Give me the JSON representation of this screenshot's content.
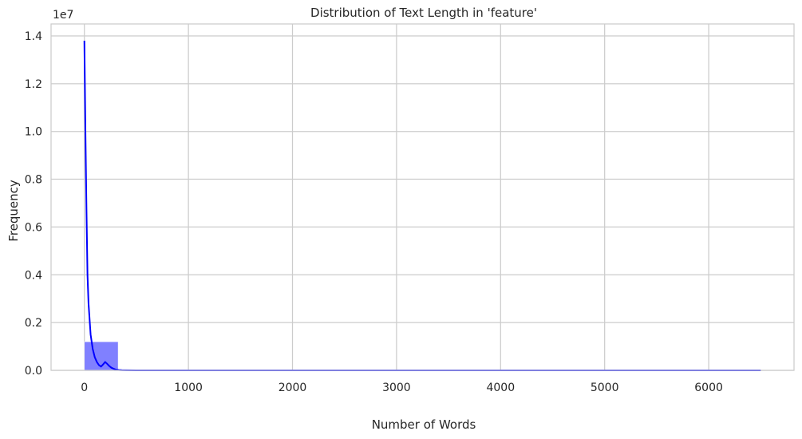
{
  "chart_data": {
    "type": "histogram",
    "title": "Distribution of Text Length in 'feature'",
    "xlabel": "Number of Words",
    "ylabel": "Frequency",
    "offset_label": "1e7",
    "xlim": [
      -320,
      6820
    ],
    "ylim": [
      0,
      14500000
    ],
    "x_ticks": [
      0,
      1000,
      2000,
      3000,
      4000,
      5000,
      6000
    ],
    "x_tick_labels": [
      "0",
      "1000",
      "2000",
      "3000",
      "4000",
      "5000",
      "6000"
    ],
    "y_ticks": [
      0,
      2000000,
      4000000,
      6000000,
      8000000,
      10000000,
      12000000,
      14000000
    ],
    "y_tick_labels": [
      "0.0",
      "0.2",
      "0.4",
      "0.6",
      "0.8",
      "1.0",
      "1.2",
      "1.4"
    ],
    "grid": true,
    "bar_color": "#8080ff",
    "kde_color": "#0000ff",
    "bins": [
      {
        "x0": 0,
        "x1": 325,
        "value": 1200000
      },
      {
        "x0": 325,
        "x1": 650,
        "value": 15000
      },
      {
        "x0": 650,
        "x1": 975,
        "value": 4000
      },
      {
        "x0": 975,
        "x1": 1300,
        "value": 2500
      },
      {
        "x0": 1300,
        "x1": 1625,
        "value": 1500
      },
      {
        "x0": 1625,
        "x1": 1950,
        "value": 1000
      },
      {
        "x0": 1950,
        "x1": 2275,
        "value": 700
      },
      {
        "x0": 2275,
        "x1": 2600,
        "value": 500
      },
      {
        "x0": 2600,
        "x1": 2925,
        "value": 300
      },
      {
        "x0": 2925,
        "x1": 3250,
        "value": 200
      },
      {
        "x0": 3250,
        "x1": 3575,
        "value": 150
      },
      {
        "x0": 3575,
        "x1": 3900,
        "value": 100
      },
      {
        "x0": 3900,
        "x1": 4225,
        "value": 80
      },
      {
        "x0": 4225,
        "x1": 4550,
        "value": 60
      },
      {
        "x0": 4550,
        "x1": 4875,
        "value": 40
      },
      {
        "x0": 4875,
        "x1": 5200,
        "value": 30
      },
      {
        "x0": 5200,
        "x1": 5525,
        "value": 20
      },
      {
        "x0": 5525,
        "x1": 5850,
        "value": 15
      },
      {
        "x0": 5850,
        "x1": 6175,
        "value": 10
      },
      {
        "x0": 6175,
        "x1": 6500,
        "value": 5
      }
    ],
    "kde": {
      "x": [
        0,
        10,
        20,
        30,
        40,
        60,
        80,
        100,
        120,
        140,
        160,
        180,
        200,
        220,
        240,
        260,
        280,
        300,
        330,
        360,
        400,
        500,
        700,
        1000,
        2000,
        3000,
        4000,
        5000,
        6000,
        6500
      ],
      "y": [
        13800000,
        10000000,
        6800000,
        4000000,
        2800000,
        1500000,
        900000,
        550000,
        350000,
        220000,
        160000,
        250000,
        350000,
        270000,
        180000,
        110000,
        70000,
        35000,
        15000,
        7000,
        3000,
        1500,
        800,
        400,
        150,
        80,
        40,
        20,
        10,
        5
      ]
    }
  }
}
